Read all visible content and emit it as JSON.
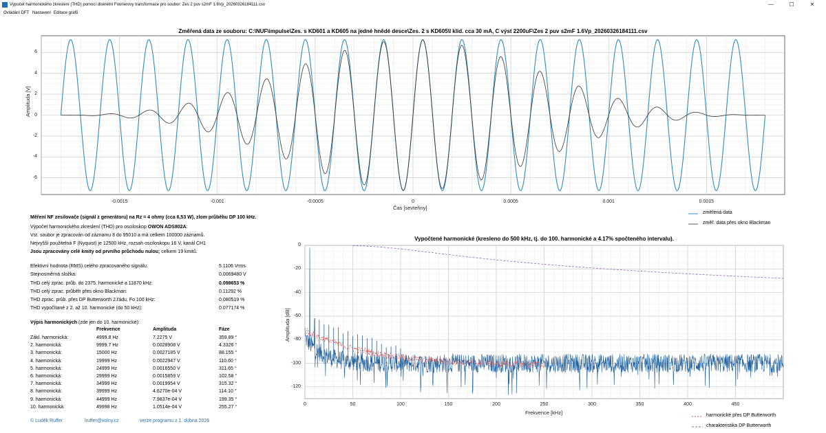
{
  "window": {
    "title": "Výpočet harmonického zkreslení (THD) pomocí diskrétní Fourierovy transformace pro soubor:   Zes 2 puv s2mF 1.6Vp_20260326184111.csv",
    "min_glyph": "—",
    "max_glyph": "☐",
    "close_glyph": "✕"
  },
  "menu": [
    "Ovládání DFT",
    "Nastavení",
    "Editace grafů"
  ],
  "chart_data": [
    {
      "type": "line",
      "title": "Změřená data ze souboru: C:\\NUF\\impulse\\Zes. s KD601 a KD605 na jedné hnědé desce\\Zes. 2 s KD605\\I klid. cca 30 mA, C výst 2200uF\\Zes 2 puv s2mF 1.6Vp_20260326184111.csv",
      "xlabel": "Čas [sevteřiny]",
      "ylabel": "Amplituda [V]",
      "xlim": [
        -0.0019,
        0.0019
      ],
      "ylim": [
        -7.6,
        7.6
      ],
      "xticks": [
        "-0.0015",
        "-0.001",
        "-0.0005",
        "0",
        "0.0005",
        "0.001",
        "0.0015"
      ],
      "xtick_values": [
        -0.0015,
        -0.001,
        -0.0005,
        0,
        0.0005,
        0.001,
        0.0015
      ],
      "yticks": [
        "6",
        "4",
        "2",
        "0",
        "-2",
        "-4",
        "-6"
      ],
      "ytick_values": [
        6,
        4,
        2,
        0,
        -2,
        -4,
        -6
      ],
      "grid": true,
      "legend_position": "bottom-right",
      "series": [
        {
          "name": "změřená data",
          "color": "#2e8bc0",
          "frequency_hz": 4999.8,
          "amplitude_v": 7.2275
        },
        {
          "name": "změř. data přes okno Blackman",
          "color": "#333333",
          "window": "Blackman"
        }
      ]
    },
    {
      "type": "line",
      "title": "Vypočtené harmonické (kresleno do 500 kHz, tj. do 100. harmonické a 4.17% spočteného intervalu).",
      "xlabel": "Frekvence [kHz]",
      "ylabel": "Amplituda [dB]",
      "xlim": [
        0,
        500
      ],
      "ylim": [
        -130,
        0
      ],
      "xticks": [
        "0",
        "50",
        "100",
        "150",
        "200",
        "250",
        "300",
        "350",
        "400",
        "450"
      ],
      "xtick_values": [
        0,
        50,
        100,
        150,
        200,
        250,
        300,
        350,
        400,
        450
      ],
      "yticks": [
        "0",
        "-20",
        "-40",
        "-60",
        "-80",
        "-100",
        "-120"
      ],
      "ytick_values": [
        0,
        -20,
        -40,
        -60,
        -80,
        -100,
        -120
      ],
      "grid": true,
      "legend_position": "bottom-right",
      "series": [
        {
          "name": "",
          "color": "#1f5f9e",
          "noise_floor_db": -100
        },
        {
          "name": "harmonické přes DP Butterworth",
          "color": "#d9534f"
        },
        {
          "name": "charakteristika DP Butterworth",
          "color": "#8a6bb8",
          "cutoff_khz": 100,
          "value_at_500khz_db": -28
        }
      ]
    }
  ],
  "info": {
    "heading": "Měření NF zesilovače (signál z generátoru) na Rz = 4 ohmy (cca 6,53 W), zlom průběhu DP 100 kHz.",
    "line1_prefix": "Výpočet harmonického zkreslení (THD) pro osciloskop ",
    "line1_bold": "OWON ADS802A",
    "line1_suffix": ":",
    "line2": "Vst. soubor je zpracován od záznamu 8 do 95010 a má celkem 100000 záznamů.",
    "line3": "Nejvyšší použitelná F (Nyquist) je 12500 kHz, rozsah osciloskopu 16 V, kanál CH1",
    "line4_bold": "Jsou zpracovány celé kmity od prvního průchodu nulou;",
    "line4_suffix": "  celkem 19 kmitů."
  },
  "stats": [
    {
      "label": "Efektivní hodnota (RMS) celého zpracovaného signálu:",
      "value": "5.1106 Vrms",
      "bold": false
    },
    {
      "label": "Stejnosměrná složka:",
      "value": "0.0069480 V",
      "bold": false
    },
    {
      "label": "THD celý zprac. průb. do 2375. harmonické a 11870 kHz:",
      "value": "0.098653 %",
      "bold": true
    },
    {
      "label": "THD celý zprac. průběh přes okno Blackman:",
      "value": "0.11292 %",
      "bold": false
    },
    {
      "label": " THD zprac. průb. přes DP Butterworth 2.řádu, Fo 100 kHz:",
      "value": "0.080519 %",
      "bold": false
    },
    {
      "label": " THD vypočítané z 2. až 10. harmonické (do 50 kHz):",
      "value": "0.077174 %",
      "bold": false
    }
  ],
  "harm_table": {
    "title_bold": "Výpis harmonických",
    "title_suffix": " (zde jen do 10. harmonické):",
    "headers": [
      "Frekvence",
      "Amplituda",
      "Fáze"
    ],
    "rows": [
      {
        "name": "Zákl. harmonická:",
        "freq": "4999.8 Hz",
        "amp": "7.2275 V",
        "phase": "359.89  °"
      },
      {
        "name": "2. harmonická:",
        "freq": "9999.7 Hz",
        "amp": "0.0028908 V",
        "phase": "4.3326  °"
      },
      {
        "name": "3. harmonická:",
        "freq": "15000 Hz",
        "amp": "0.0027185 V",
        "phase": "88.155  °"
      },
      {
        "name": "4. harmonická:",
        "freq": "19999 Hz",
        "amp": "0.0022947 V",
        "phase": "110.60  °"
      },
      {
        "name": "5. harmonická:",
        "freq": "24999 Hz",
        "amp": "0.0016550 V",
        "phase": "311.65  °"
      },
      {
        "name": "6. harmonická:",
        "freq": "29999 Hz",
        "amp": "0.0015859 V",
        "phase": "102.58  °"
      },
      {
        "name": "7. harmonická:",
        "freq": "34999 Hz",
        "amp": "0.0019954 V",
        "phase": "315.32  °"
      },
      {
        "name": "8. harmonická:",
        "freq": "39999 Hz",
        "amp": "4.6270e-04 V",
        "phase": "114.10  °"
      },
      {
        "name": "9. harmonická:",
        "freq": "44999 Hz",
        "amp": "7.9837e-04 V",
        "phase": "199.35  °"
      },
      {
        "name": "10. harmonická:",
        "freq": "49998 Hz",
        "amp": "1.0514e-04 V",
        "phase": "255.27  °"
      }
    ]
  },
  "footer": {
    "author": "© Luděk Ruffer",
    "email": "lruffer@volny.cz",
    "version": "verze programu z  1. dubna 2026"
  }
}
